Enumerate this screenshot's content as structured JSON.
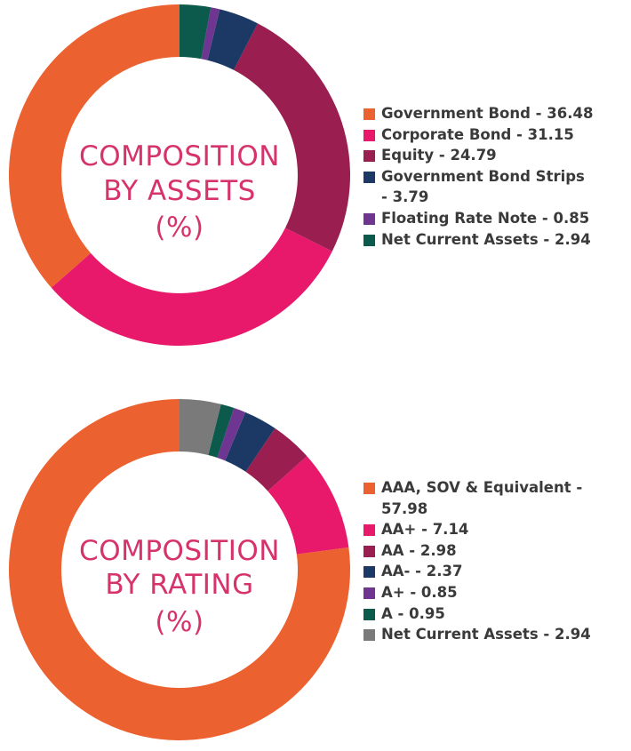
{
  "chart_data": [
    {
      "type": "pie",
      "title": "COMPOSITION BY ASSETS (%)",
      "title_lines": [
        "COMPOSITION",
        "BY ASSETS",
        "(%)"
      ],
      "labels": [
        "Government Bond",
        "Corporate Bond",
        "Equity",
        "Government Bond Strips",
        "Floating Rate Note",
        "Net Current Assets"
      ],
      "values": [
        36.48,
        31.15,
        24.79,
        3.79,
        0.85,
        2.94
      ],
      "colors": [
        "#ec6130",
        "#e8186a",
        "#9a1e50",
        "#1c3966",
        "#6e3591",
        "#0c5a4b"
      ],
      "legend_labels": [
        "Government Bond - 36.48",
        "Corporate Bond - 31.15",
        "Equity - 24.79",
        "Government Bond Strips - 3.79",
        "Floating Rate Note - 0.85",
        "Net Current Assets - 2.94"
      ],
      "legend_position": "right",
      "title_color": "#d6336c"
    },
    {
      "type": "pie",
      "title": "COMPOSITION BY RATING (%)",
      "title_lines": [
        "COMPOSITION",
        "BY RATING",
        "(%)"
      ],
      "labels": [
        "AAA, SOV & Equivalent",
        "AA+",
        "AA",
        "AA-",
        "A+",
        "A",
        "Net Current Assets"
      ],
      "values": [
        57.98,
        7.14,
        2.98,
        2.37,
        0.85,
        0.95,
        2.94
      ],
      "colors": [
        "#ec6130",
        "#e8186a",
        "#9a1e50",
        "#1c3966",
        "#6e3591",
        "#0c5a4b",
        "#7a7a7a"
      ],
      "legend_labels": [
        "AAA, SOV & Equivalent - 57.98",
        "AA+ - 7.14",
        "AA - 2.98",
        "AA- - 2.37",
        "A+ - 0.85",
        "A - 0.95",
        "Net Current Assets - 2.94"
      ],
      "legend_position": "right",
      "title_color": "#d6336c"
    }
  ]
}
